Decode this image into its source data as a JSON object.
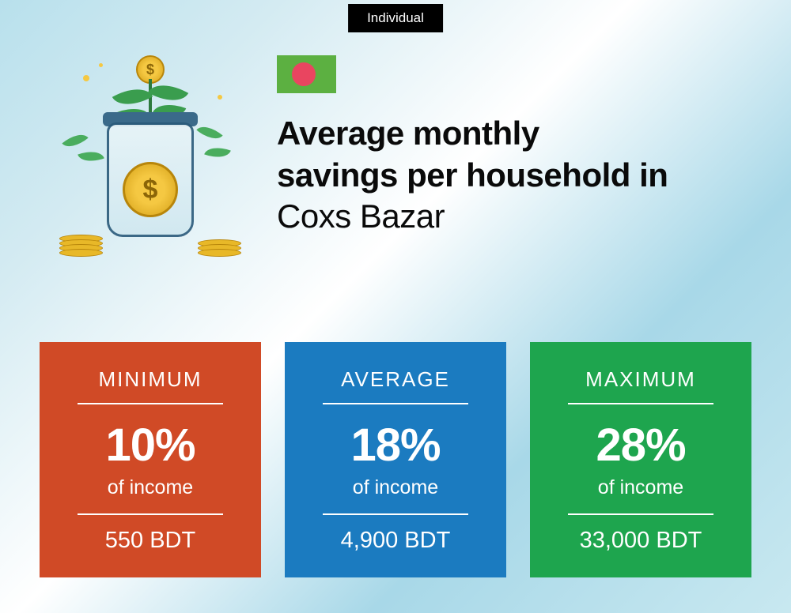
{
  "badge": "Individual",
  "title": {
    "line1": "Average monthly",
    "line2": "savings per household in",
    "location": "Coxs Bazar"
  },
  "flag": {
    "background_color": "#5cb041",
    "circle_color": "#e94560"
  },
  "cards": [
    {
      "label": "MINIMUM",
      "percent": "10%",
      "subtext": "of income",
      "amount": "550 BDT",
      "background_color": "#d04a26"
    },
    {
      "label": "AVERAGE",
      "percent": "18%",
      "subtext": "of income",
      "amount": "4,900 BDT",
      "background_color": "#1b7bc0"
    },
    {
      "label": "MAXIMUM",
      "percent": "28%",
      "subtext": "of income",
      "amount": "33,000 BDT",
      "background_color": "#1ea54e"
    }
  ]
}
